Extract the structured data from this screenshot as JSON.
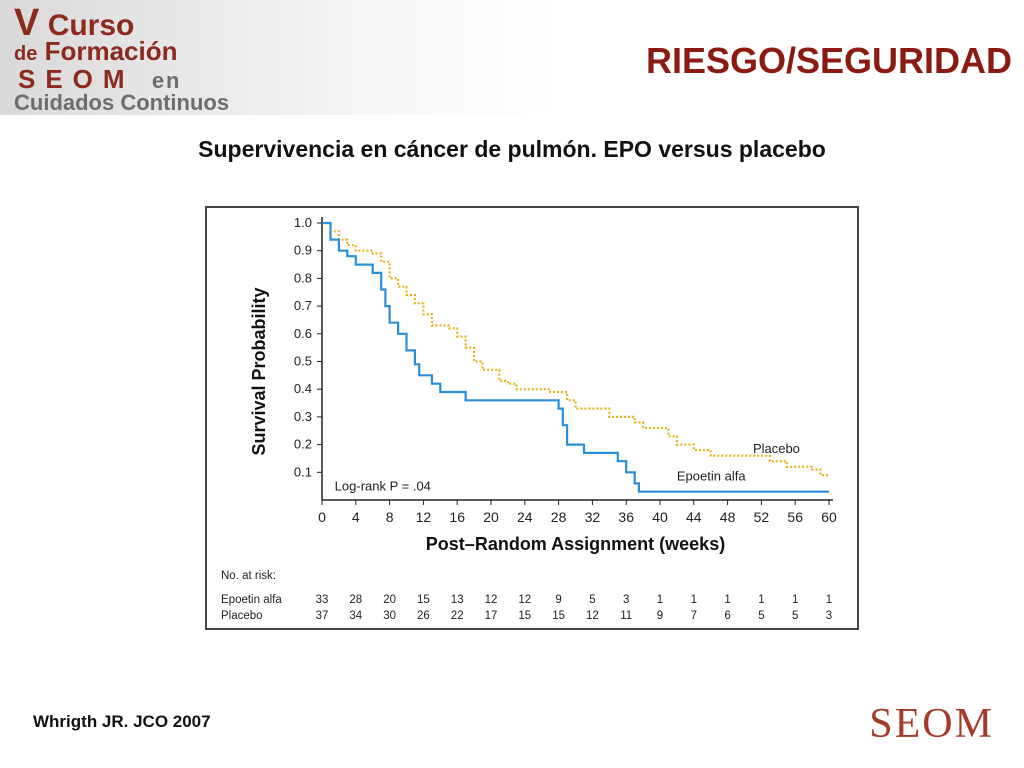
{
  "header": {
    "logo": {
      "line1_big": "V",
      "line1_rest": " Curso",
      "line2_small": "de",
      "line2_rest": " Formación",
      "line3_brand": "SEOM",
      "line3_rest": "en",
      "line4": "Cuidados Continuos"
    },
    "title": "RIESGO/SEGURIDAD"
  },
  "subtitle": "Supervivencia en cáncer de pulmón. EPO versus placebo",
  "citation": "Whrigth JR. JCO 2007",
  "footer_logo": "SEOM",
  "chart_data": {
    "type": "line",
    "step": true,
    "xlabel": "Post–Random Assignment (weeks)",
    "ylabel": "Survival Probability",
    "xlim": [
      0,
      60
    ],
    "ylim": [
      0,
      1.0
    ],
    "x_ticks": [
      "0",
      "4",
      "8",
      "12",
      "16",
      "20",
      "24",
      "28",
      "32",
      "36",
      "40",
      "44",
      "48",
      "52",
      "56",
      "60"
    ],
    "y_ticks": [
      "0.1",
      "0.2",
      "0.3",
      "0.4",
      "0.5",
      "0.6",
      "0.7",
      "0.8",
      "0.9",
      "1.0"
    ],
    "annotation": "Log-rank P = .04",
    "series": [
      {
        "name": "Placebo",
        "color": "#e3b41e",
        "style": "dotted",
        "points": [
          [
            0,
            1.0
          ],
          [
            1,
            0.97
          ],
          [
            2,
            0.94
          ],
          [
            3,
            0.92
          ],
          [
            4,
            0.9
          ],
          [
            6,
            0.89
          ],
          [
            7,
            0.86
          ],
          [
            8,
            0.8
          ],
          [
            9,
            0.77
          ],
          [
            10,
            0.74
          ],
          [
            11,
            0.71
          ],
          [
            12,
            0.67
          ],
          [
            13,
            0.63
          ],
          [
            15,
            0.62
          ],
          [
            16,
            0.59
          ],
          [
            17,
            0.55
          ],
          [
            18,
            0.5
          ],
          [
            19,
            0.47
          ],
          [
            21,
            0.43
          ],
          [
            22,
            0.42
          ],
          [
            23,
            0.4
          ],
          [
            27,
            0.39
          ],
          [
            29,
            0.36
          ],
          [
            30,
            0.33
          ],
          [
            34,
            0.3
          ],
          [
            37,
            0.28
          ],
          [
            38,
            0.26
          ],
          [
            41,
            0.23
          ],
          [
            42,
            0.2
          ],
          [
            44,
            0.18
          ],
          [
            46,
            0.16
          ],
          [
            53,
            0.14
          ],
          [
            55,
            0.12
          ],
          [
            58,
            0.11
          ],
          [
            59,
            0.09
          ],
          [
            60,
            0.09
          ]
        ]
      },
      {
        "name": "Epoetin alfa",
        "color": "#2b8fd8",
        "style": "solid",
        "points": [
          [
            0,
            1.0
          ],
          [
            1,
            0.94
          ],
          [
            2,
            0.9
          ],
          [
            3,
            0.88
          ],
          [
            4,
            0.85
          ],
          [
            6,
            0.82
          ],
          [
            7,
            0.76
          ],
          [
            7.5,
            0.7
          ],
          [
            8,
            0.64
          ],
          [
            9,
            0.6
          ],
          [
            10,
            0.54
          ],
          [
            11,
            0.49
          ],
          [
            11.5,
            0.45
          ],
          [
            13,
            0.42
          ],
          [
            14,
            0.39
          ],
          [
            17,
            0.36
          ],
          [
            28,
            0.33
          ],
          [
            28.5,
            0.27
          ],
          [
            29,
            0.2
          ],
          [
            31,
            0.17
          ],
          [
            35,
            0.14
          ],
          [
            36,
            0.1
          ],
          [
            37,
            0.06
          ],
          [
            37.5,
            0.03
          ],
          [
            60,
            0.03
          ]
        ]
      }
    ],
    "legend_labels": [
      {
        "series": "Placebo",
        "label_x": 51,
        "label_y": 0.17
      },
      {
        "series": "Epoetin alfa",
        "label_x": 42,
        "label_y": 0.07
      }
    ],
    "risk_table": {
      "title": "No. at risk:",
      "rows": [
        {
          "name": "Epoetin alfa",
          "values": [
            "33",
            "28",
            "20",
            "15",
            "13",
            "12",
            "12",
            "9",
            "5",
            "3",
            "1",
            "1",
            "1",
            "1",
            "1",
            "1"
          ]
        },
        {
          "name": "Placebo",
          "values": [
            "37",
            "34",
            "30",
            "26",
            "22",
            "17",
            "15",
            "15",
            "12",
            "11",
            "9",
            "7",
            "6",
            "5",
            "5",
            "3"
          ]
        }
      ]
    }
  }
}
